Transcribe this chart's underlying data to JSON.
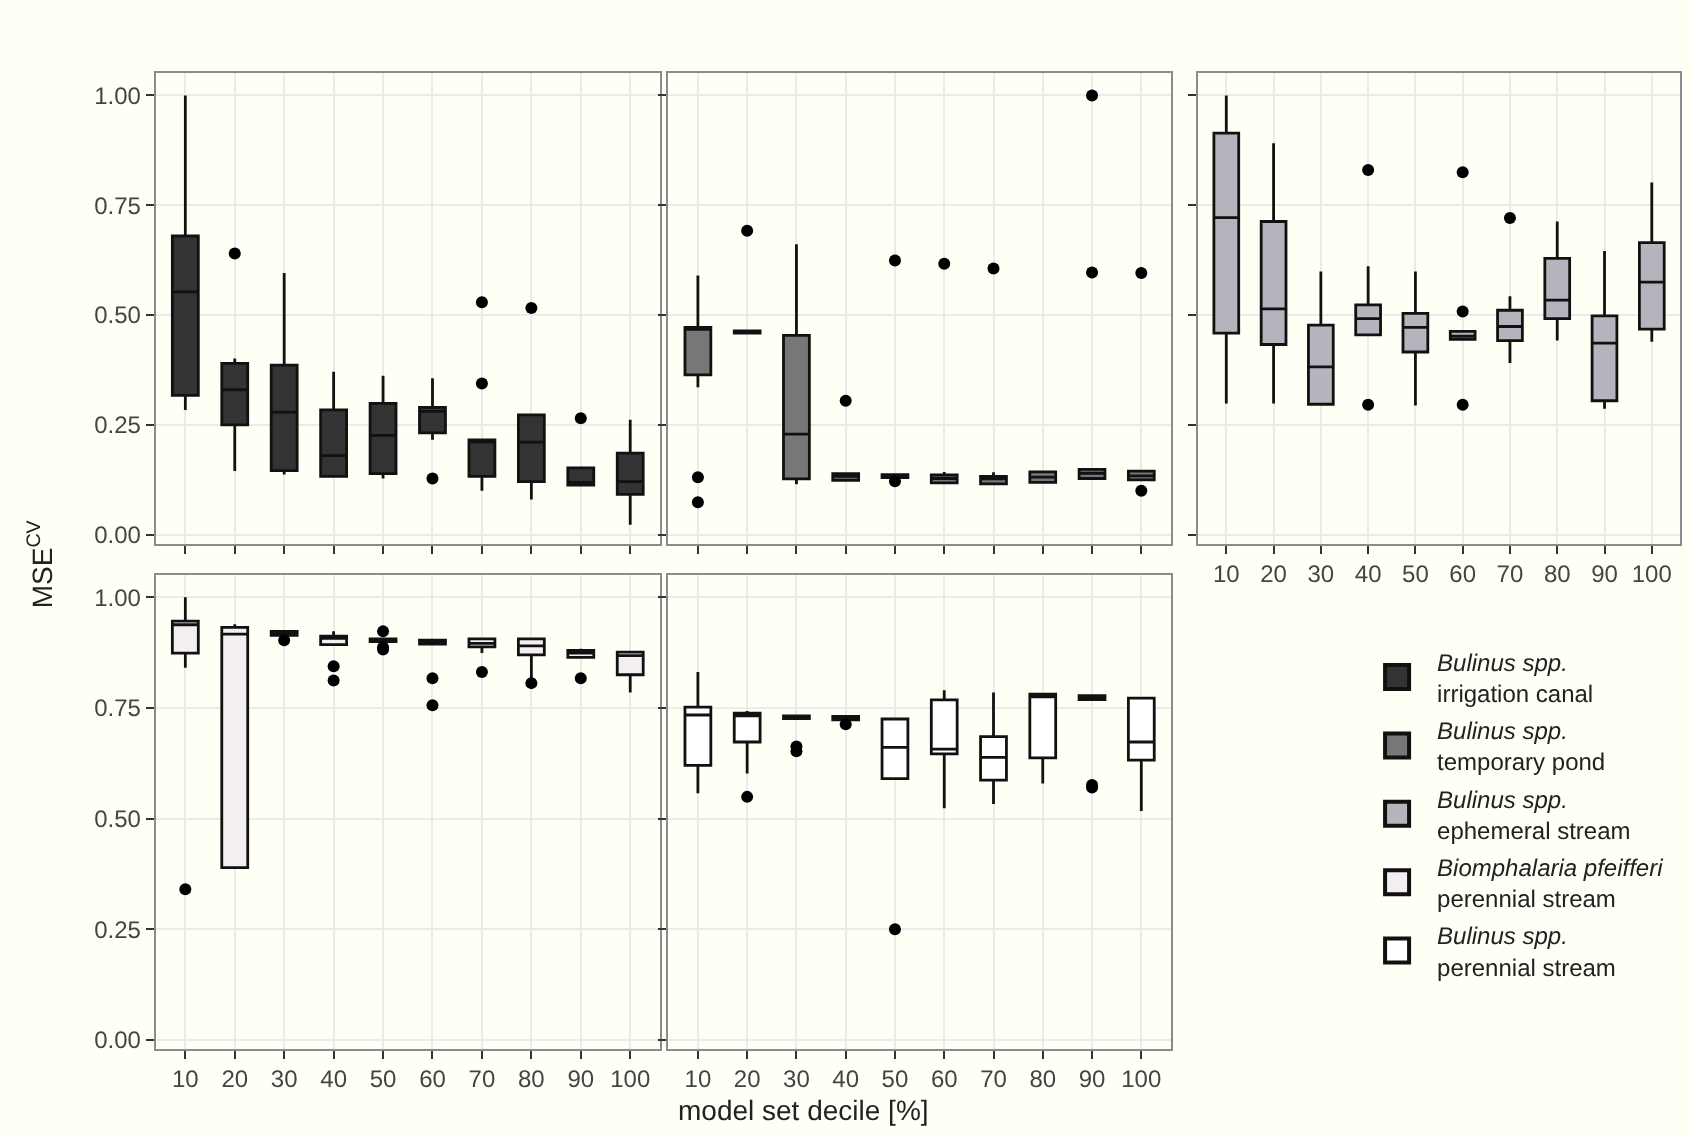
{
  "chart_data": [
    {
      "type": "box",
      "ylabel": "MSE$^{CV}$",
      "categories": [
        "10",
        "20",
        "30",
        "40",
        "50",
        "60",
        "70",
        "80",
        "90",
        "100"
      ],
      "ylim": [
        -0.02,
        1.05
      ],
      "yticks": [
        {
          "value": 0,
          "label": "0.00"
        },
        {
          "value": 0.25,
          "label": "0.25"
        },
        {
          "value": 0.5,
          "label": "0.50"
        },
        {
          "value": 0.75,
          "label": "0.75"
        },
        {
          "value": 1,
          "label": "1.00"
        }
      ],
      "grid": true,
      "legend": "bottom right",
      "tick_labels": "y",
      "series": [
        {
          "name": "Bulinus spp.\nirrigation canal",
          "color": "#333333",
          "boxes": [
            {
              "low": 0.284,
              "q1": 0.317,
              "median": 0.553,
              "q3": 0.68,
              "high": 1.0
            },
            {
              "low": 0.145,
              "q1": 0.25,
              "median": 0.33,
              "q3": 0.39,
              "high": 0.401,
              "outliers": [
                0.64
              ]
            },
            {
              "low": 0.137,
              "q1": 0.146,
              "median": 0.279,
              "q3": 0.386,
              "high": 0.596
            },
            {
              "low": 0.133,
              "q1": 0.133,
              "median": 0.18,
              "q3": 0.284,
              "high": 0.371
            },
            {
              "low": 0.128,
              "q1": 0.139,
              "median": 0.226,
              "q3": 0.299,
              "high": 0.362
            },
            {
              "low": 0.216,
              "q1": 0.232,
              "median": 0.281,
              "q3": 0.29,
              "high": 0.356,
              "outliers": [
                0.128
              ]
            },
            {
              "low": 0.1,
              "q1": 0.133,
              "median": 0.213,
              "q3": 0.216,
              "high": 0.216,
              "outliers": [
                0.529,
                0.344
              ]
            },
            {
              "low": 0.08,
              "q1": 0.121,
              "median": 0.211,
              "q3": 0.273,
              "high": 0.273,
              "outliers": [
                0.516
              ]
            },
            {
              "low": 0.113,
              "q1": 0.113,
              "median": 0.119,
              "q3": 0.152,
              "high": 0.152,
              "outliers": [
                0.265
              ]
            },
            {
              "low": 0.023,
              "q1": 0.092,
              "median": 0.121,
              "q3": 0.186,
              "high": 0.262
            }
          ]
        }
      ]
    },
    {
      "type": "box",
      "categories": [
        "10",
        "20",
        "30",
        "40",
        "50",
        "60",
        "70",
        "80",
        "90",
        "100"
      ],
      "ylim": [
        -0.02,
        1.05
      ],
      "yticks": [
        0,
        0.25,
        0.5,
        0.75,
        1
      ],
      "grid": true,
      "legend": "bottom right",
      "tick_labels": false,
      "series": [
        {
          "name": "Bulinus spp.\ntemporary pond",
          "color": "#777777",
          "boxes": [
            {
              "low": 0.336,
              "q1": 0.364,
              "median": 0.469,
              "q3": 0.472,
              "high": 0.59,
              "outliers": [
                0.131,
                0.074
              ]
            },
            {
              "low": 0.459,
              "q1": 0.459,
              "median": 0.462,
              "q3": 0.464,
              "high": 0.464,
              "outliers": [
                0.692
              ]
            },
            {
              "low": 0.115,
              "q1": 0.127,
              "median": 0.229,
              "q3": 0.454,
              "high": 0.661
            },
            {
              "low": 0.124,
              "q1": 0.124,
              "median": 0.133,
              "q3": 0.139,
              "high": 0.139,
              "outliers": [
                0.305
              ]
            },
            {
              "low": 0.13,
              "q1": 0.13,
              "median": 0.133,
              "q3": 0.137,
              "high": 0.137,
              "outliers": [
                0.624,
                0.122
              ]
            },
            {
              "low": 0.118,
              "q1": 0.118,
              "median": 0.128,
              "q3": 0.136,
              "high": 0.143,
              "outliers": [
                0.617
              ]
            },
            {
              "low": 0.116,
              "q1": 0.116,
              "median": 0.127,
              "q3": 0.133,
              "high": 0.142,
              "outliers": [
                0.606
              ]
            },
            {
              "low": 0.119,
              "q1": 0.119,
              "median": 0.131,
              "q3": 0.143,
              "high": 0.143
            },
            {
              "low": 0.128,
              "q1": 0.128,
              "median": 0.14,
              "q3": 0.149,
              "high": 0.149,
              "outliers": [
                1.0,
                0.597
              ]
            },
            {
              "low": 0.125,
              "q1": 0.125,
              "median": 0.134,
              "q3": 0.145,
              "high": 0.145,
              "outliers": [
                0.596,
                0.1
              ]
            }
          ]
        }
      ]
    },
    {
      "type": "box",
      "categories": [
        "10",
        "20",
        "30",
        "40",
        "50",
        "60",
        "70",
        "80",
        "90",
        "100"
      ],
      "ylim": [
        -0.02,
        1.05
      ],
      "yticks": [
        0,
        0.25,
        0.5,
        0.75,
        1
      ],
      "grid": true,
      "legend": "bottom right",
      "tick_labels": "x",
      "series": [
        {
          "name": "Bulinus spp.\nephemeral stream",
          "color": "#b4b4bc",
          "boxes": [
            {
              "low": 0.299,
              "q1": 0.459,
              "median": 0.722,
              "q3": 0.914,
              "high": 1.0
            },
            {
              "low": 0.299,
              "q1": 0.433,
              "median": 0.514,
              "q3": 0.713,
              "high": 0.891
            },
            {
              "low": 0.297,
              "q1": 0.297,
              "median": 0.382,
              "q3": 0.477,
              "high": 0.599
            },
            {
              "low": 0.455,
              "q1": 0.455,
              "median": 0.492,
              "q3": 0.523,
              "high": 0.611,
              "outliers": [
                0.83,
                0.296
              ]
            },
            {
              "low": 0.294,
              "q1": 0.416,
              "median": 0.472,
              "q3": 0.504,
              "high": 0.599
            },
            {
              "low": 0.445,
              "q1": 0.445,
              "median": 0.452,
              "q3": 0.463,
              "high": 0.463,
              "outliers": [
                0.825,
                0.508,
                0.296
              ]
            },
            {
              "low": 0.391,
              "q1": 0.442,
              "median": 0.474,
              "q3": 0.511,
              "high": 0.543,
              "outliers": [
                0.721
              ]
            },
            {
              "low": 0.442,
              "q1": 0.492,
              "median": 0.534,
              "q3": 0.629,
              "high": 0.713
            },
            {
              "low": 0.287,
              "q1": 0.305,
              "median": 0.436,
              "q3": 0.498,
              "high": 0.646
            },
            {
              "low": 0.439,
              "q1": 0.468,
              "median": 0.575,
              "q3": 0.665,
              "high": 0.802
            }
          ]
        }
      ]
    },
    {
      "type": "box",
      "categories": [
        "10",
        "20",
        "30",
        "40",
        "50",
        "60",
        "70",
        "80",
        "90",
        "100"
      ],
      "ylim": [
        -0.02,
        1.05
      ],
      "yticks": [
        {
          "value": 0,
          "label": "0.00"
        },
        {
          "value": 0.25,
          "label": "0.25"
        },
        {
          "value": 0.5,
          "label": "0.50"
        },
        {
          "value": 0.75,
          "label": "0.75"
        },
        {
          "value": 1,
          "label": "1.00"
        }
      ],
      "grid": true,
      "legend": "bottom right",
      "series": [
        {
          "name": "Biomphalaria pfeifferi\nperennial stream",
          "color": "#f2eef2",
          "boxes": [
            {
              "low": 0.841,
              "q1": 0.874,
              "median": 0.938,
              "q3": 0.946,
              "high": 1.0,
              "outliers": [
                0.34
              ]
            },
            {
              "low": 0.389,
              "q1": 0.389,
              "median": 0.917,
              "q3": 0.932,
              "high": 0.939
            },
            {
              "low": 0.914,
              "q1": 0.914,
              "median": 0.918,
              "q3": 0.923,
              "high": 0.923,
              "outliers": [
                0.903
              ]
            },
            {
              "low": 0.893,
              "q1": 0.893,
              "median": 0.908,
              "q3": 0.912,
              "high": 0.923,
              "outliers": [
                0.844,
                0.812
              ]
            },
            {
              "low": 0.9,
              "q1": 0.9,
              "median": 0.903,
              "q3": 0.906,
              "high": 0.906,
              "outliers": [
                0.923,
                0.887,
                0.882
              ]
            },
            {
              "low": 0.894,
              "q1": 0.894,
              "median": 0.899,
              "q3": 0.903,
              "high": 0.903,
              "outliers": [
                0.817,
                0.756
              ]
            },
            {
              "low": 0.874,
              "q1": 0.888,
              "median": 0.896,
              "q3": 0.906,
              "high": 0.906,
              "outliers": [
                0.831
              ]
            },
            {
              "low": 0.814,
              "q1": 0.87,
              "median": 0.89,
              "q3": 0.906,
              "high": 0.906,
              "outliers": [
                0.806
              ]
            },
            {
              "low": 0.864,
              "q1": 0.864,
              "median": 0.874,
              "q3": 0.88,
              "high": 0.884,
              "outliers": [
                0.817
              ]
            },
            {
              "low": 0.785,
              "q1": 0.825,
              "median": 0.868,
              "q3": 0.876,
              "high": 0.876
            }
          ]
        }
      ]
    },
    {
      "type": "box",
      "xlabel": "model set decile [%]",
      "categories": [
        "10",
        "20",
        "30",
        "40",
        "50",
        "60",
        "70",
        "80",
        "90",
        "100"
      ],
      "ylim": [
        -0.02,
        1.05
      ],
      "yticks": [
        0,
        0.25,
        0.5,
        0.75,
        1
      ],
      "grid": true,
      "legend": "bottom right",
      "tick_labels": "x",
      "series": [
        {
          "name": "Bulinus spp.\nperennial stream",
          "color": "#ffffff",
          "boxes": [
            {
              "low": 0.557,
              "q1": 0.62,
              "median": 0.734,
              "q3": 0.752,
              "high": 0.831
            },
            {
              "low": 0.602,
              "q1": 0.673,
              "median": 0.732,
              "q3": 0.738,
              "high": 0.743,
              "outliers": [
                0.549
              ]
            },
            {
              "low": 0.726,
              "q1": 0.726,
              "median": 0.729,
              "q3": 0.732,
              "high": 0.732,
              "outliers": [
                0.663,
                0.652
              ]
            },
            {
              "low": 0.723,
              "q1": 0.723,
              "median": 0.728,
              "q3": 0.731,
              "high": 0.731,
              "outliers": [
                0.713
              ]
            },
            {
              "low": 0.59,
              "q1": 0.59,
              "median": 0.661,
              "q3": 0.725,
              "high": 0.725,
              "outliers": [
                0.25
              ]
            },
            {
              "low": 0.523,
              "q1": 0.646,
              "median": 0.657,
              "q3": 0.768,
              "high": 0.79
            },
            {
              "low": 0.533,
              "q1": 0.587,
              "median": 0.638,
              "q3": 0.685,
              "high": 0.785
            },
            {
              "low": 0.579,
              "q1": 0.637,
              "median": 0.775,
              "q3": 0.781,
              "high": 0.781
            },
            {
              "low": 0.769,
              "q1": 0.769,
              "median": 0.773,
              "q3": 0.778,
              "high": 0.778,
              "outliers": [
                0.576,
                0.57
              ]
            },
            {
              "low": 0.517,
              "q1": 0.632,
              "median": 0.673,
              "q3": 0.772,
              "high": 0.772
            }
          ]
        }
      ]
    }
  ]
}
